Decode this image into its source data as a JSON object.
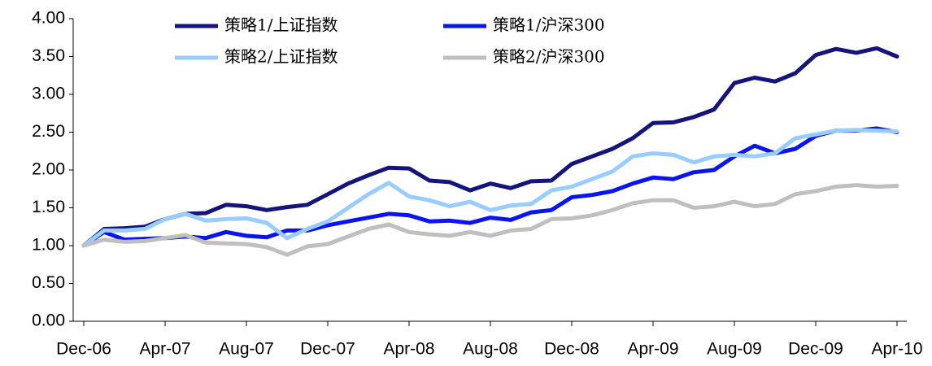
{
  "chart_data": {
    "type": "line",
    "categories": [
      "Dec-06",
      null,
      null,
      null,
      "Apr-07",
      null,
      null,
      null,
      "Aug-07",
      null,
      null,
      null,
      "Dec-07",
      null,
      null,
      null,
      "Apr-08",
      null,
      null,
      null,
      "Aug-08",
      null,
      null,
      null,
      "Dec-08",
      null,
      null,
      null,
      "Apr-09",
      null,
      null,
      null,
      "Aug-09",
      null,
      null,
      null,
      "Dec-09",
      null,
      null,
      null,
      "Apr-10"
    ],
    "ylim": [
      0,
      4
    ],
    "yticks": [
      {
        "value": 0,
        "label": "0.00"
      },
      {
        "value": 0.5,
        "label": "0.50"
      },
      {
        "value": 1,
        "label": "1.00"
      },
      {
        "value": 1.5,
        "label": "1.50"
      },
      {
        "value": 2,
        "label": "2.00"
      },
      {
        "value": 2.5,
        "label": "2.50"
      },
      {
        "value": 3,
        "label": "3.00"
      },
      {
        "value": 3.5,
        "label": "3.50"
      },
      {
        "value": 4,
        "label": "4.00"
      }
    ],
    "series": [
      {
        "name": "策略1/上证指数",
        "color": "#14147a",
        "values": [
          1.0,
          1.22,
          1.23,
          1.25,
          1.35,
          1.42,
          1.43,
          1.54,
          1.52,
          1.47,
          1.51,
          1.54,
          1.68,
          1.82,
          1.93,
          2.03,
          2.02,
          1.86,
          1.84,
          1.73,
          1.82,
          1.76,
          1.85,
          1.86,
          2.08,
          2.18,
          2.28,
          2.42,
          2.62,
          2.63,
          2.7,
          2.8,
          3.15,
          3.22,
          3.17,
          3.28,
          3.52,
          3.6,
          3.55,
          3.61,
          3.5
        ]
      },
      {
        "name": "策略1/沪深300",
        "color": "#0a14f0",
        "values": [
          1.0,
          1.18,
          1.08,
          1.09,
          1.1,
          1.12,
          1.1,
          1.18,
          1.13,
          1.11,
          1.2,
          1.2,
          1.27,
          1.32,
          1.37,
          1.42,
          1.4,
          1.32,
          1.33,
          1.3,
          1.37,
          1.34,
          1.44,
          1.47,
          1.64,
          1.67,
          1.72,
          1.82,
          1.9,
          1.88,
          1.97,
          2.0,
          2.18,
          2.32,
          2.22,
          2.28,
          2.45,
          2.52,
          2.52,
          2.55,
          2.5
        ]
      },
      {
        "name": "策略2/上证指数",
        "color": "#99ccff",
        "values": [
          1.0,
          1.2,
          1.2,
          1.22,
          1.35,
          1.42,
          1.33,
          1.35,
          1.36,
          1.3,
          1.1,
          1.22,
          1.32,
          1.5,
          1.68,
          1.83,
          1.65,
          1.6,
          1.52,
          1.58,
          1.47,
          1.53,
          1.55,
          1.73,
          1.78,
          1.88,
          1.98,
          2.18,
          2.22,
          2.2,
          2.1,
          2.18,
          2.2,
          2.18,
          2.22,
          2.42,
          2.47,
          2.52,
          2.53,
          2.52,
          2.51
        ]
      },
      {
        "name": "策略2/沪深300",
        "color": "#bfbfbf",
        "values": [
          1.0,
          1.08,
          1.05,
          1.06,
          1.1,
          1.14,
          1.04,
          1.03,
          1.02,
          0.98,
          0.88,
          0.99,
          1.02,
          1.12,
          1.22,
          1.28,
          1.18,
          1.15,
          1.13,
          1.18,
          1.13,
          1.2,
          1.22,
          1.35,
          1.36,
          1.4,
          1.47,
          1.56,
          1.6,
          1.6,
          1.5,
          1.52,
          1.58,
          1.52,
          1.55,
          1.68,
          1.72,
          1.78,
          1.8,
          1.78,
          1.79
        ]
      }
    ]
  }
}
